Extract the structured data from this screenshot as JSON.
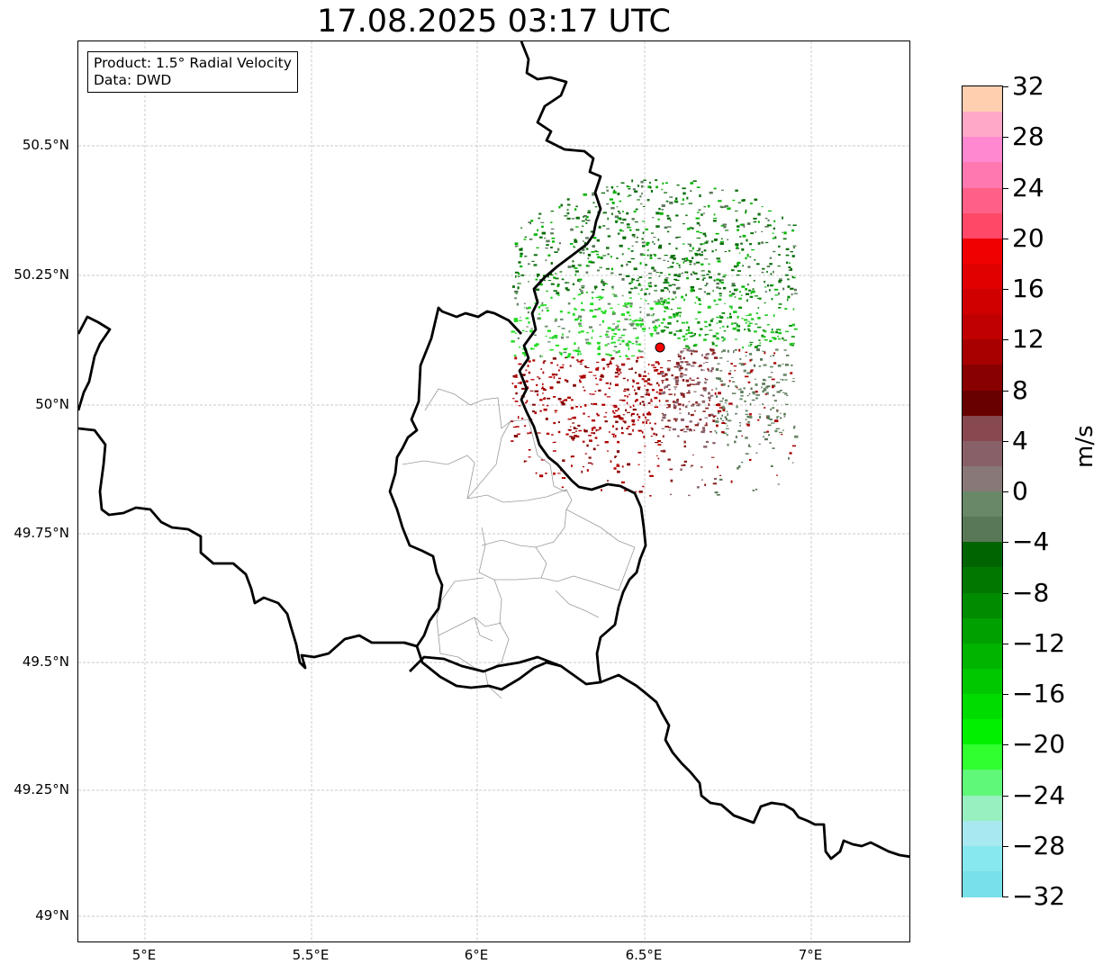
{
  "title": "17.08.2025 03:17 UTC",
  "info": {
    "product": "Product: 1.5° Radial Velocity",
    "data": "Data: DWD"
  },
  "lat_labels": [
    "50.5°N",
    "50.25°N",
    "50°N",
    "49.75°N",
    "49.5°N",
    "49.25°N",
    "49°N"
  ],
  "lon_labels": [
    "5°E",
    "5.5°E",
    "6°E",
    "6.5°E",
    "7°E"
  ],
  "colorbar": {
    "unit": "m/s",
    "range": [
      -32,
      32
    ],
    "tick_labels": [
      "32",
      "28",
      "24",
      "20",
      "16",
      "12",
      "8",
      "4",
      "0",
      "−4",
      "−8",
      "−12",
      "−16",
      "−20",
      "−24",
      "−28",
      "−32"
    ],
    "colors_top_to_bottom": [
      "#ffcfb0",
      "#ffa8c8",
      "#ff88d0",
      "#ff78b0",
      "#ff6088",
      "#ff4868",
      "#f00000",
      "#e00000",
      "#d00000",
      "#c00000",
      "#a80000",
      "#880000",
      "#680000",
      "#884850",
      "#886068",
      "#887878",
      "#688868",
      "#587858",
      "#006400",
      "#007800",
      "#008c00",
      "#00a000",
      "#00b400",
      "#00c800",
      "#00dc00",
      "#00f000",
      "#30ff30",
      "#60f878",
      "#98f0c0",
      "#a8e8f0",
      "#88e8f0",
      "#78e0e8"
    ]
  },
  "radar_site": {
    "color": "#ff0000"
  },
  "map": {
    "lon_range": [
      4.8,
      7.3
    ],
    "lat_range": [
      48.95,
      50.7
    ]
  }
}
